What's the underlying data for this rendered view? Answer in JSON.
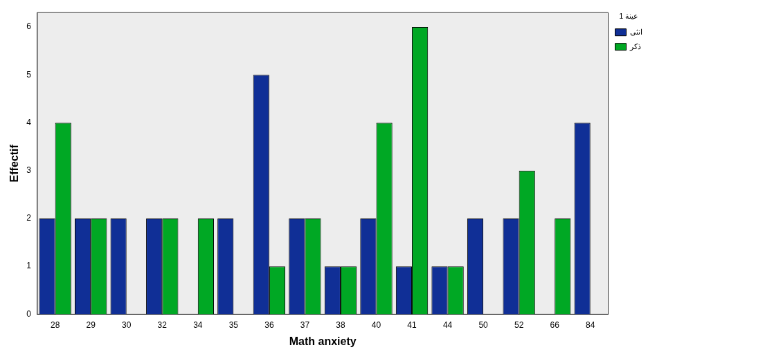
{
  "chart_data": {
    "type": "bar",
    "xlabel": "Math anxiety",
    "ylabel": "Effectif",
    "legend_title": "عينة 1",
    "categories": [
      "28",
      "29",
      "30",
      "32",
      "34",
      "35",
      "36",
      "37",
      "38",
      "40",
      "41",
      "44",
      "50",
      "52",
      "66",
      "84"
    ],
    "series": [
      {
        "name": "انثى",
        "color": "#102f96",
        "values": [
          2,
          2,
          2,
          2,
          null,
          2,
          5,
          2,
          1,
          2,
          1,
          1,
          2,
          2,
          null,
          4
        ]
      },
      {
        "name": "ذكر",
        "color": "#00a824",
        "values": [
          4,
          2,
          null,
          2,
          2,
          null,
          1,
          2,
          1,
          4,
          6,
          1,
          null,
          3,
          2,
          null
        ]
      }
    ],
    "ylim": [
      0,
      6.3
    ],
    "yticks": [
      0,
      1,
      2,
      3,
      4,
      5,
      6
    ],
    "grid": false,
    "legend": "top right"
  }
}
